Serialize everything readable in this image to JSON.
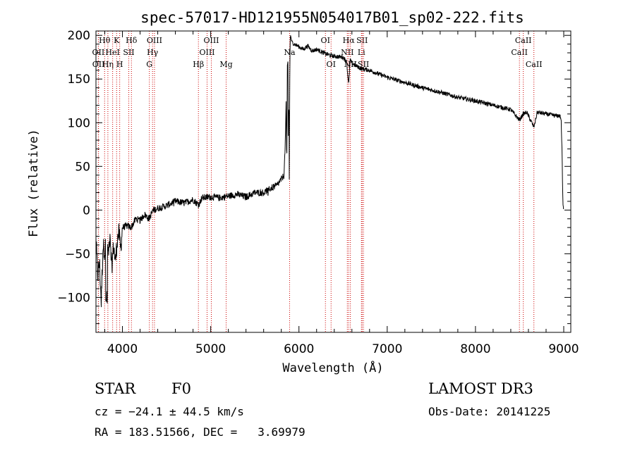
{
  "chart_data": {
    "type": "line",
    "title": "spec-57017-HD121955N054017B01_sp02-222.fits",
    "xlabel": "Wavelength (Å)",
    "ylabel": "Flux (relative)",
    "xlim": [
      3700,
      9080
    ],
    "ylim": [
      -140,
      205
    ],
    "xticks": [
      4000,
      5000,
      6000,
      7000,
      8000,
      9000
    ],
    "yticks": [
      -100,
      -50,
      0,
      50,
      100,
      150,
      200
    ],
    "spectrum": {
      "name": "flux",
      "x": [
        3700,
        3720,
        3740,
        3760,
        3780,
        3800,
        3820,
        3840,
        3860,
        3880,
        3900,
        3920,
        3940,
        3960,
        3980,
        4000,
        4050,
        4100,
        4150,
        4200,
        4250,
        4300,
        4350,
        4400,
        4500,
        4600,
        4700,
        4800,
        4862,
        4900,
        5000,
        5100,
        5200,
        5300,
        5400,
        5500,
        5600,
        5700,
        5750,
        5800,
        5830,
        5845,
        5855,
        5862,
        5868,
        5875,
        5880,
        5886,
        5890,
        5896,
        5900,
        5905,
        5920,
        5950,
        6000,
        6050,
        6100,
        6150,
        6200,
        6300,
        6400,
        6500,
        6540,
        6563,
        6580,
        6600,
        6700,
        6800,
        6900,
        7000,
        7200,
        7400,
        7600,
        7800,
        8000,
        8200,
        8400,
        8498,
        8542,
        8580,
        8662,
        8700,
        8800,
        8900,
        8950,
        8960,
        8970,
        8980,
        8990,
        9000
      ],
      "y": [
        -35,
        -75,
        -60,
        -105,
        -40,
        -48,
        -30,
        -50,
        -25,
        -65,
        -40,
        -60,
        -35,
        -25,
        -45,
        -20,
        -18,
        -20,
        -10,
        -12,
        -5,
        -10,
        0,
        2,
        5,
        10,
        8,
        12,
        6,
        14,
        15,
        14,
        16,
        18,
        15,
        20,
        20,
        26,
        28,
        35,
        40,
        75,
        130,
        45,
        165,
        170,
        75,
        135,
        35,
        150,
        195,
        200,
        192,
        190,
        187,
        184,
        188,
        182,
        184,
        179,
        176,
        175,
        170,
        143,
        172,
        168,
        162,
        160,
        156,
        152,
        146,
        140,
        135,
        129,
        125,
        120,
        115,
        103,
        110,
        112,
        95,
        112,
        110,
        108,
        108,
        107,
        104,
        70,
        10,
        0
      ]
    },
    "spectral_lines": [
      {
        "label": "Hθ",
        "wavelength": 3798,
        "row": 0
      },
      {
        "label": "OII",
        "wavelength": 3727,
        "row": 1
      },
      {
        "label": "OII",
        "wavelength": 3729,
        "row": 2
      },
      {
        "label": "Hη",
        "wavelength": 3835,
        "row": 2
      },
      {
        "label": "HeI",
        "wavelength": 3889,
        "row": 1
      },
      {
        "label": "K",
        "wavelength": 3934,
        "row": 0
      },
      {
        "label": "H",
        "wavelength": 3969,
        "row": 2
      },
      {
        "label": "SII",
        "wavelength": 4072,
        "row": 1
      },
      {
        "label": "Hδ",
        "wavelength": 4102,
        "row": 0
      },
      {
        "label": "G",
        "wavelength": 4305,
        "row": 2
      },
      {
        "label": "Hγ",
        "wavelength": 4341,
        "row": 1
      },
      {
        "label": "OIII",
        "wavelength": 4363,
        "row": 0
      },
      {
        "label": "Hβ",
        "wavelength": 4861,
        "row": 2
      },
      {
        "label": "OIII",
        "wavelength": 4959,
        "row": 1
      },
      {
        "label": "OIII",
        "wavelength": 5007,
        "row": 0
      },
      {
        "label": "Mg",
        "wavelength": 5175,
        "row": 2
      },
      {
        "label": "Na",
        "wavelength": 5894,
        "row": 1
      },
      {
        "label": "OI",
        "wavelength": 6300,
        "row": 0
      },
      {
        "label": "OI",
        "wavelength": 6364,
        "row": 2
      },
      {
        "label": "NII",
        "wavelength": 6548,
        "row": 1
      },
      {
        "label": "Hα",
        "wavelength": 6563,
        "row": 0
      },
      {
        "label": "NII",
        "wavelength": 6583,
        "row": 2
      },
      {
        "label": "Li",
        "wavelength": 6708,
        "row": 1
      },
      {
        "label": "SII",
        "wavelength": 6716,
        "row": 0
      },
      {
        "label": "SII",
        "wavelength": 6731,
        "row": 2
      },
      {
        "label": "CaII",
        "wavelength": 8498,
        "row": 1
      },
      {
        "label": "CaII",
        "wavelength": 8542,
        "row": 0
      },
      {
        "label": "CaII",
        "wavelength": 8662,
        "row": 2
      }
    ]
  },
  "info": {
    "class_label": "STAR",
    "subclass": "F0",
    "survey": "LAMOST DR3",
    "cz": "cz = −24.1 ± 44.5 km/s",
    "obs_date": "Obs-Date: 20141225",
    "radec": "RA = 183.51566, DEC =   3.69979"
  },
  "colors": {
    "line_marker": "#cc0000",
    "spectrum": "#000000"
  }
}
